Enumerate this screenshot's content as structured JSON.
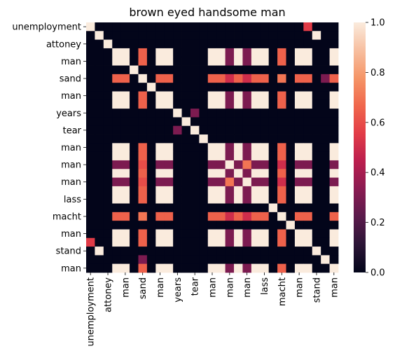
{
  "chart_data": {
    "type": "heatmap",
    "title": "brown eyed handsome man",
    "xlabel": "",
    "ylabel": "",
    "row_labels": [
      "unemployment",
      "attoney",
      "man",
      "sand",
      "man",
      "years",
      "tear",
      "man",
      "man",
      "man",
      "lass",
      "macht",
      "man",
      "stand",
      "man"
    ],
    "row_ids": [
      "unemployment",
      "$",
      "attoney",
      "$",
      "man",
      "$",
      "sand",
      "$",
      "man",
      "$",
      "years",
      "$",
      "tear",
      "$",
      "man",
      "$",
      "man",
      "$",
      "man",
      "$",
      "lass",
      "$",
      "macht",
      "$",
      "man",
      "$",
      "stand",
      "$",
      "man"
    ],
    "col_ids": [
      "unemployment",
      "$",
      "attoney",
      "$",
      "man",
      "$",
      "sand",
      "$",
      "man",
      "$",
      "years",
      "$",
      "tear",
      "$",
      "man",
      "$",
      "man",
      "$",
      "man",
      "$",
      "lass",
      "$",
      "macht",
      "$",
      "man",
      "$",
      "stand",
      "$",
      "man"
    ],
    "row_label_at": [
      0,
      2,
      4,
      6,
      8,
      10,
      12,
      14,
      16,
      18,
      20,
      22,
      24,
      26,
      28
    ],
    "col_labels": [
      "unemployment",
      "attoney",
      "man",
      "sand",
      "man",
      "years",
      "tear",
      "man",
      "man",
      "man",
      "lass",
      "macht",
      "man",
      "stand",
      "man"
    ],
    "col_label_at": [
      0,
      2,
      4,
      6,
      8,
      10,
      12,
      14,
      16,
      18,
      20,
      22,
      24,
      26,
      28
    ],
    "values": [
      [
        1,
        0,
        0,
        0,
        0,
        0,
        0,
        0,
        0,
        0,
        0,
        0,
        0,
        0,
        0,
        0,
        0,
        0,
        0,
        0,
        0,
        0,
        0,
        0,
        0,
        0.55,
        0,
        0,
        0
      ],
      [
        0,
        1,
        0,
        0,
        0,
        0,
        0,
        0,
        0,
        0,
        0,
        0,
        0,
        0,
        0,
        0,
        0,
        0,
        0,
        0,
        0,
        0,
        0,
        0,
        0,
        0,
        1,
        0,
        0
      ],
      [
        0,
        0,
        1,
        0,
        0,
        0,
        0,
        0,
        0,
        0,
        0,
        0,
        0,
        0,
        0,
        0,
        0,
        0,
        0,
        0,
        0,
        0,
        0,
        0,
        0,
        0,
        0,
        0,
        0
      ],
      [
        0,
        0,
        0,
        1,
        1,
        0,
        0.65,
        0,
        1,
        1,
        0,
        0,
        0,
        0,
        1,
        1,
        0.3,
        1,
        0.3,
        1,
        1,
        0,
        0.65,
        0,
        1,
        1,
        0,
        0,
        1
      ],
      [
        0,
        0,
        0,
        1,
        1,
        0,
        0.65,
        0,
        1,
        1,
        0,
        0,
        0,
        0,
        1,
        1,
        0.3,
        1,
        0.3,
        1,
        1,
        0,
        0.65,
        0,
        1,
        1,
        0,
        0,
        1
      ],
      [
        0,
        0,
        0,
        0,
        0,
        1,
        0,
        0,
        0,
        0,
        0,
        0,
        0,
        0,
        0,
        0,
        0,
        0,
        0,
        0,
        0,
        0,
        0,
        0,
        0,
        0,
        0,
        0,
        0
      ],
      [
        0,
        0,
        0,
        0.65,
        0.65,
        0,
        1,
        0,
        0.65,
        0.65,
        0,
        0,
        0,
        0,
        0.65,
        0.65,
        0.5,
        0.65,
        0.5,
        0.65,
        0.65,
        0,
        0.7,
        0,
        0.65,
        0.65,
        0,
        0.3,
        0.65
      ],
      [
        0,
        0,
        0,
        0,
        0,
        0,
        0,
        1,
        0,
        0,
        0,
        0,
        0,
        0,
        0,
        0,
        0,
        0,
        0,
        0,
        0,
        0,
        0,
        0,
        0,
        0,
        0,
        0,
        0
      ],
      [
        0,
        0,
        0,
        1,
        1,
        0,
        0.65,
        0,
        1,
        1,
        0,
        0,
        0,
        0,
        1,
        1,
        0.3,
        1,
        0.3,
        1,
        1,
        0,
        0.65,
        0,
        1,
        1,
        0,
        0,
        1
      ],
      [
        0,
        0,
        0,
        1,
        1,
        0,
        0.65,
        0,
        1,
        1,
        0,
        0,
        0,
        0,
        1,
        1,
        0.3,
        1,
        0.3,
        1,
        1,
        0,
        0.65,
        0,
        1,
        1,
        0,
        0,
        1
      ],
      [
        0,
        0,
        0,
        0,
        0,
        0,
        0,
        0,
        0,
        0,
        1,
        0,
        0.3,
        0,
        0,
        0,
        0,
        0,
        0,
        0,
        0,
        0,
        0,
        0,
        0,
        0,
        0,
        0,
        0
      ],
      [
        0,
        0,
        0,
        0,
        0,
        0,
        0,
        0,
        0,
        0,
        0,
        1,
        0,
        0,
        0,
        0,
        0,
        0,
        0,
        0,
        0,
        0,
        0,
        0,
        0,
        0,
        0,
        0,
        0
      ],
      [
        0,
        0,
        0,
        0,
        0,
        0,
        0,
        0,
        0,
        0,
        0.3,
        0,
        1,
        0,
        0,
        0,
        0,
        0,
        0,
        0,
        0,
        0,
        0,
        0,
        0,
        0,
        0,
        0,
        0
      ],
      [
        0,
        0,
        0,
        0,
        0,
        0,
        0,
        0,
        0,
        0,
        0,
        0,
        0,
        1,
        0,
        0,
        0,
        0,
        0,
        0,
        0,
        0,
        0,
        0,
        0,
        0,
        0,
        0,
        0
      ],
      [
        0,
        0,
        0,
        1,
        1,
        0,
        0.65,
        0,
        1,
        1,
        0,
        0,
        0,
        0,
        1,
        1,
        0.3,
        1,
        0.3,
        1,
        1,
        0,
        0.65,
        0,
        1,
        1,
        0,
        0,
        1
      ],
      [
        0,
        0,
        0,
        1,
        1,
        0,
        0.65,
        0,
        1,
        1,
        0,
        0,
        0,
        0,
        1,
        1,
        0.3,
        1,
        0.3,
        1,
        1,
        0,
        0.65,
        0,
        1,
        1,
        0,
        0,
        1
      ],
      [
        0,
        0,
        0,
        0.3,
        0.3,
        0,
        0.6,
        0,
        0.3,
        0.3,
        0,
        0,
        0,
        0,
        0.3,
        0.3,
        1,
        0.3,
        0.7,
        0.3,
        0.3,
        0,
        0.5,
        0,
        0.3,
        0.3,
        0,
        0,
        0.3
      ],
      [
        0,
        0,
        0,
        1,
        1,
        0,
        0.65,
        0,
        1,
        1,
        0,
        0,
        0,
        0,
        1,
        1,
        0.3,
        1,
        0.3,
        1,
        1,
        0,
        0.65,
        0,
        1,
        1,
        0,
        0,
        1
      ],
      [
        0,
        0,
        0,
        0.3,
        0.3,
        0,
        0.6,
        0,
        0.3,
        0.3,
        0,
        0,
        0,
        0,
        0.3,
        0.3,
        0.7,
        0.3,
        1,
        0.3,
        0.3,
        0,
        0.5,
        0,
        0.3,
        0.3,
        0,
        0,
        0.3
      ],
      [
        0,
        0,
        0,
        1,
        1,
        0,
        0.65,
        0,
        1,
        1,
        0,
        0,
        0,
        0,
        1,
        1,
        0.3,
        1,
        0.3,
        1,
        1,
        0,
        0.65,
        0,
        1,
        1,
        0,
        0,
        1
      ],
      [
        0,
        0,
        0,
        1,
        1,
        0,
        0.65,
        0,
        1,
        1,
        0,
        0,
        0,
        0,
        1,
        1,
        0.3,
        1,
        0.3,
        1,
        1,
        0,
        0.65,
        0,
        1,
        1,
        0,
        0,
        1
      ],
      [
        0,
        0,
        0,
        0,
        0,
        0,
        0,
        0,
        0,
        0,
        0,
        0,
        0,
        0,
        0,
        0,
        0,
        0,
        0,
        0,
        0,
        1,
        0,
        0,
        0,
        0,
        0,
        0,
        0
      ],
      [
        0,
        0,
        0,
        0.65,
        0.65,
        0,
        0.7,
        0,
        0.65,
        0.65,
        0,
        0,
        0,
        0,
        0.65,
        0.65,
        0.5,
        0.65,
        0.5,
        0.65,
        0.65,
        0,
        1,
        0,
        0.65,
        0.65,
        0,
        0,
        0.65
      ],
      [
        0,
        0,
        0,
        0,
        0,
        0,
        0,
        0,
        0,
        0,
        0,
        0,
        0,
        0,
        0,
        0,
        0,
        0,
        0,
        0,
        0,
        0,
        0,
        1,
        0,
        0,
        0,
        0,
        0
      ],
      [
        0,
        0,
        0,
        1,
        1,
        0,
        0.65,
        0,
        1,
        1,
        0,
        0,
        0,
        0,
        1,
        1,
        0.3,
        1,
        0.3,
        1,
        1,
        0,
        0.65,
        0,
        1,
        1,
        0,
        0,
        1
      ],
      [
        0.55,
        0,
        0,
        1,
        1,
        0,
        0.65,
        0,
        1,
        1,
        0,
        0,
        0,
        0,
        1,
        1,
        0.3,
        1,
        0.3,
        1,
        1,
        0,
        0.65,
        0,
        1,
        1,
        0,
        0,
        1
      ],
      [
        0,
        1,
        0,
        0,
        0,
        0,
        0,
        0,
        0,
        0,
        0,
        0,
        0,
        0,
        0,
        0,
        0,
        0,
        0,
        0,
        0,
        0,
        0,
        0,
        0,
        0,
        1,
        0,
        0
      ],
      [
        0,
        0,
        0,
        0,
        0,
        0,
        0.3,
        0,
        0,
        0,
        0,
        0,
        0,
        0,
        0,
        0,
        0,
        0,
        0,
        0,
        0,
        0,
        0,
        0,
        0,
        0,
        0,
        1,
        0
      ],
      [
        0,
        0,
        0,
        1,
        1,
        0,
        0.65,
        0,
        1,
        1,
        0,
        0,
        0,
        0,
        1,
        1,
        0.3,
        1,
        0.3,
        1,
        1,
        0,
        0.65,
        0,
        1,
        1,
        0,
        0,
        1
      ]
    ],
    "vmin": 0,
    "vmax": 1,
    "colorbar_ticks": [
      "0.0",
      "0.2",
      "0.4",
      "0.6",
      "0.8",
      "1.0"
    ],
    "colorbar_tick_values": [
      0,
      0.2,
      0.4,
      0.6,
      0.8,
      1.0
    ],
    "colormap": "rocket",
    "colormap_stops": [
      "#03051a",
      "#2b1536",
      "#5a1a4b",
      "#8a1b52",
      "#bb1e4e",
      "#e23c47",
      "#f0674c",
      "#f59567",
      "#f7bfa0",
      "#faebdd"
    ],
    "grid": false,
    "legend": "colorbar-right"
  }
}
